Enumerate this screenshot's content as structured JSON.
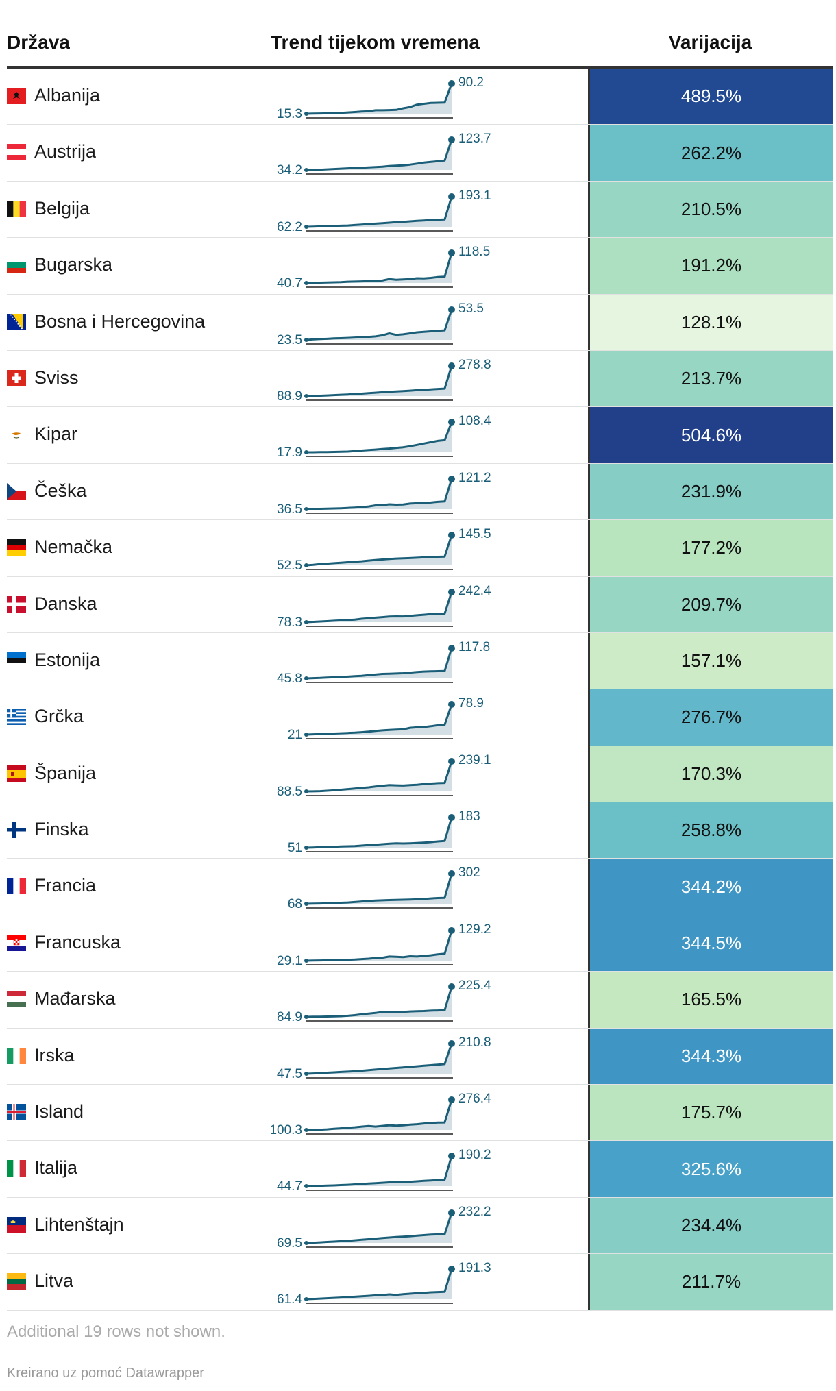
{
  "headers": {
    "country": "Država",
    "trend": "Trend tijekom vremena",
    "variation": "Varijacija"
  },
  "footer": {
    "note": "Additional 19 rows not shown.",
    "credit": "Kreirano uz pomoć Datawrapper"
  },
  "colors": {
    "sparkline": "#1b5e78",
    "spark_fill": "#d3dfe5",
    "label": "#1b5e78"
  },
  "chart_data": {
    "type": "table",
    "title": "",
    "columns": [
      "Država",
      "Trend tijekom vremena",
      "Varijacija"
    ],
    "rows": [
      {
        "country": "Albanija",
        "flag": "albania-flag-icon",
        "start": "15.3",
        "end": "90.2",
        "variation": "489.5%",
        "variation_value": 489.5,
        "bg": "#214a92",
        "fg": "#ffffff",
        "trend": [
          15.3,
          15.6,
          16,
          16.3,
          16.6,
          17.5,
          18.5,
          19.5,
          21,
          21.5,
          24,
          24,
          24.5,
          25,
          29,
          32,
          38,
          40,
          42,
          42.5,
          43,
          90.2
        ]
      },
      {
        "country": "Austrija",
        "flag": "austria-flag-icon",
        "start": "34.2",
        "end": "123.7",
        "variation": "262.2%",
        "variation_value": 262.2,
        "bg": "#6ac0c6",
        "fg": "#111111",
        "trend": [
          34.2,
          34.5,
          35,
          36,
          37,
          38,
          39,
          40,
          41,
          42,
          43,
          44,
          46,
          47,
          48,
          50,
          53,
          56,
          58,
          60,
          62,
          123.7
        ]
      },
      {
        "country": "Belgija",
        "flag": "belgium-flag-icon",
        "start": "62.2",
        "end": "193.1",
        "variation": "210.5%",
        "variation_value": 210.5,
        "bg": "#98d6c4",
        "fg": "#111111",
        "trend": [
          62.2,
          63,
          64,
          65,
          66,
          67,
          68,
          70,
          72,
          74,
          76,
          78,
          80,
          82,
          84,
          86,
          88,
          90,
          92,
          93,
          94,
          193.1
        ]
      },
      {
        "country": "Bugarska",
        "flag": "bulgaria-flag-icon",
        "start": "40.7",
        "end": "118.5",
        "variation": "191.2%",
        "variation_value": 191.2,
        "bg": "#ace0c1",
        "fg": "#111111",
        "trend": [
          40.7,
          41,
          41.5,
          42,
          42.5,
          43,
          44,
          44.5,
          45,
          45.5,
          46,
          47,
          51,
          49,
          50,
          51,
          53,
          52.5,
          54,
          56,
          57,
          118.5
        ]
      },
      {
        "country": "Bosna i Hercegovina",
        "flag": "bosnia-flag-icon",
        "start": "23.5",
        "end": "53.5",
        "variation": "128.1%",
        "variation_value": 128.1,
        "bg": "#e6f5df",
        "fg": "#111111",
        "trend": [
          23.5,
          24,
          24.3,
          24.6,
          25,
          25.2,
          25.5,
          25.8,
          26,
          26.5,
          27,
          28,
          30,
          28.5,
          29,
          30,
          31,
          31.5,
          32,
          32.5,
          33,
          53.5
        ]
      },
      {
        "country": "Sviss",
        "flag": "switzerland-flag-icon",
        "start": "88.9",
        "end": "278.8",
        "variation": "213.7%",
        "variation_value": 213.7,
        "bg": "#98d6c4",
        "fg": "#111111",
        "trend": [
          88.9,
          90,
          91,
          93,
          95,
          97,
          99,
          101,
          104,
          107,
          110,
          113,
          116,
          118,
          120,
          123,
          126,
          128,
          131,
          134,
          136,
          278.8
        ]
      },
      {
        "country": "Kipar",
        "flag": "cyprus-flag-icon",
        "start": "17.9",
        "end": "108.4",
        "variation": "504.6%",
        "variation_value": 504.6,
        "bg": "#223f8a",
        "fg": "#ffffff",
        "trend": [
          17.9,
          18,
          18.3,
          18.6,
          19,
          19.5,
          20,
          21.5,
          23,
          24.5,
          26,
          27.5,
          29,
          31,
          33,
          36,
          40,
          44,
          48,
          52,
          54,
          108.4
        ]
      },
      {
        "country": "Češka",
        "flag": "czech-flag-icon",
        "start": "36.5",
        "end": "121.2",
        "variation": "231.9%",
        "variation_value": 231.9,
        "bg": "#85cdc5",
        "fg": "#111111",
        "trend": [
          36.5,
          37,
          37.5,
          38,
          38.5,
          39,
          40,
          41,
          42,
          44,
          47,
          47.5,
          50,
          49,
          49.5,
          52,
          53,
          54,
          55,
          57,
          58,
          121.2
        ]
      },
      {
        "country": "Nemačka",
        "flag": "germany-flag-icon",
        "start": "52.5",
        "end": "145.5",
        "variation": "177.2%",
        "variation_value": 177.2,
        "bg": "#b8e4be",
        "fg": "#111111",
        "trend": [
          52.5,
          54,
          56,
          57.5,
          59,
          60.5,
          62,
          63.5,
          65,
          67,
          69,
          70.5,
          72,
          73.5,
          74,
          75,
          76,
          77,
          78,
          79,
          79.5,
          145.5
        ]
      },
      {
        "country": "Danska",
        "flag": "denmark-flag-icon",
        "start": "78.3",
        "end": "242.4",
        "variation": "209.7%",
        "variation_value": 209.7,
        "bg": "#98d6c4",
        "fg": "#111111",
        "trend": [
          78.3,
          80,
          82,
          84,
          86,
          88,
          90,
          92,
          97,
          100,
          103,
          106,
          109,
          110,
          109.5,
          113,
          116,
          119,
          122,
          124,
          125,
          242.4
        ]
      },
      {
        "country": "Estonija",
        "flag": "estonia-flag-icon",
        "start": "45.8",
        "end": "117.8",
        "variation": "157.1%",
        "variation_value": 157.1,
        "bg": "#cdebc7",
        "fg": "#111111",
        "trend": [
          45.8,
          46.5,
          47,
          48,
          48.5,
          49,
          50,
          51,
          52,
          53.5,
          55,
          56.5,
          57,
          57.5,
          58,
          59.5,
          61,
          62,
          62.5,
          63,
          63.5,
          117.8
        ]
      },
      {
        "country": "Grčka",
        "flag": "greece-flag-icon",
        "start": "21",
        "end": "78.9",
        "variation": "276.7%",
        "variation_value": 276.7,
        "bg": "#62b8ca",
        "fg": "#111111",
        "trend": [
          21,
          21.5,
          22,
          22.5,
          23,
          23.5,
          24,
          24.5,
          25.5,
          26.5,
          28,
          29,
          30,
          30.5,
          31,
          34,
          35,
          35.5,
          37,
          39,
          40,
          78.9
        ]
      },
      {
        "country": "Španija",
        "flag": "spain-flag-icon",
        "start": "88.5",
        "end": "239.1",
        "variation": "170.3%",
        "variation_value": 170.3,
        "bg": "#c1e7c2",
        "fg": "#111111",
        "trend": [
          88.5,
          89,
          90,
          92,
          94,
          97,
          100,
          103,
          106,
          109,
          113,
          117,
          120,
          119,
          118,
          120,
          122,
          125,
          128,
          130,
          131,
          239.1
        ]
      },
      {
        "country": "Finska",
        "flag": "finland-flag-icon",
        "start": "51",
        "end": "183",
        "variation": "258.8%",
        "variation_value": 258.8,
        "bg": "#6ac0c6",
        "fg": "#111111",
        "trend": [
          51,
          52,
          53,
          54,
          55,
          56,
          57,
          58,
          60,
          62,
          64,
          66,
          68,
          70,
          69,
          70,
          71,
          73,
          75,
          78,
          80,
          183
        ]
      },
      {
        "country": "Francia",
        "flag": "france-flag-icon",
        "start": "68",
        "end": "302",
        "variation": "344.2%",
        "variation_value": 344.2,
        "bg": "#3f96c4",
        "fg": "#ffffff",
        "trend": [
          68,
          69,
          70,
          72,
          74,
          76,
          78,
          82,
          86,
          90,
          93,
          95,
          97,
          99,
          100,
          101,
          103,
          106,
          110,
          113,
          115,
          302
        ]
      },
      {
        "country": "Francuska",
        "flag": "croatia-flag-icon",
        "start": "29.1",
        "end": "129.2",
        "variation": "344.5%",
        "variation_value": 344.5,
        "bg": "#3f96c4",
        "fg": "#ffffff",
        "trend": [
          29.1,
          29.5,
          30,
          30.5,
          31,
          31.5,
          32,
          33,
          34.5,
          36,
          38,
          39,
          43,
          42,
          41,
          44,
          43,
          45,
          47,
          50,
          52,
          129.2
        ]
      },
      {
        "country": "Mađarska",
        "flag": "hungary-flag-icon",
        "start": "84.9",
        "end": "225.4",
        "variation": "165.5%",
        "variation_value": 165.5,
        "bg": "#c5e8c1",
        "fg": "#111111",
        "trend": [
          84.9,
          85.5,
          86,
          86.5,
          87,
          88,
          90,
          93,
          97,
          100,
          103,
          108,
          107,
          106,
          108,
          110,
          111,
          112,
          114,
          115,
          116,
          225.4
        ]
      },
      {
        "country": "Irska",
        "flag": "ireland-flag-icon",
        "start": "47.5",
        "end": "210.8",
        "variation": "344.3%",
        "variation_value": 344.3,
        "bg": "#3f96c4",
        "fg": "#ffffff",
        "trend": [
          47.5,
          49,
          51,
          53,
          55,
          57,
          59,
          61,
          64,
          67,
          70,
          73,
          76,
          79,
          82,
          85,
          88,
          91,
          94,
          97,
          100,
          210.8
        ]
      },
      {
        "country": "Island",
        "flag": "iceland-flag-icon",
        "start": "100.3",
        "end": "276.4",
        "variation": "175.7%",
        "variation_value": 175.7,
        "bg": "#bae5bf",
        "fg": "#111111",
        "trend": [
          100.3,
          101,
          102,
          104,
          107,
          110,
          113,
          116,
          120,
          123,
          120,
          124,
          128,
          125,
          127,
          131,
          134,
          138,
          141,
          143,
          144,
          276.4
        ]
      },
      {
        "country": "Italija",
        "flag": "italy-flag-icon",
        "start": "44.7",
        "end": "190.2",
        "variation": "325.6%",
        "variation_value": 325.6,
        "bg": "#47a1c8",
        "fg": "#ffffff",
        "trend": [
          44.7,
          45.5,
          46,
          47,
          48,
          49.5,
          51,
          53,
          55,
          57,
          59,
          61,
          63,
          65,
          64,
          66,
          68,
          70,
          72,
          74,
          76,
          190.2
        ]
      },
      {
        "country": "Lihtenštajn",
        "flag": "liechtenstein-flag-icon",
        "start": "69.5",
        "end": "232.2",
        "variation": "234.4%",
        "variation_value": 234.4,
        "bg": "#85cdc5",
        "fg": "#111111",
        "trend": [
          69.5,
          71,
          73,
          75,
          77,
          79,
          81,
          84,
          87,
          90,
          93,
          96,
          99,
          102,
          104,
          106,
          109,
          112,
          115,
          116,
          117,
          232.2
        ]
      },
      {
        "country": "Litva",
        "flag": "lithuania-flag-icon",
        "start": "61.4",
        "end": "191.3",
        "variation": "211.7%",
        "variation_value": 211.7,
        "bg": "#98d6c4",
        "fg": "#111111",
        "trend": [
          61.4,
          62.5,
          64,
          65.5,
          67,
          68.5,
          70,
          72,
          74,
          76,
          78,
          79,
          82,
          80,
          83,
          85,
          87,
          89,
          91,
          92,
          93,
          191.3
        ]
      }
    ]
  }
}
